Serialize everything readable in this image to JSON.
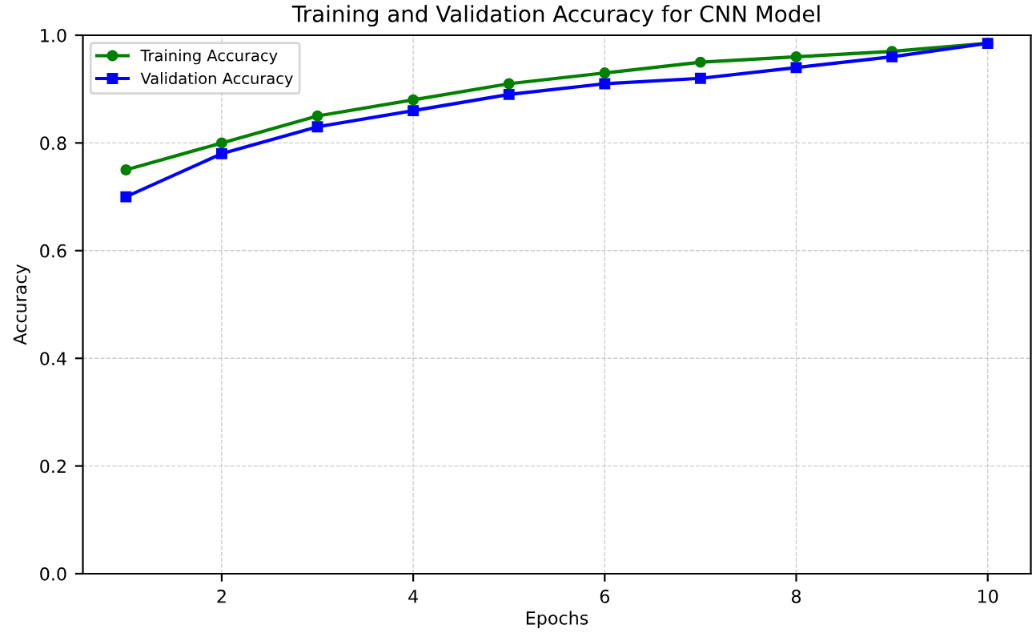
{
  "chart_data": {
    "type": "line",
    "title": "Training and Validation Accuracy for CNN Model",
    "xlabel": "Epochs",
    "ylabel": "Accuracy",
    "x": [
      1,
      2,
      3,
      4,
      5,
      6,
      7,
      8,
      9,
      10
    ],
    "series": [
      {
        "name": "Training Accuracy",
        "color": "#008000",
        "marker": "circle",
        "values": [
          0.75,
          0.8,
          0.85,
          0.88,
          0.91,
          0.93,
          0.95,
          0.96,
          0.97,
          0.985
        ]
      },
      {
        "name": "Validation Accuracy",
        "color": "#0000ff",
        "marker": "square",
        "values": [
          0.7,
          0.78,
          0.83,
          0.86,
          0.89,
          0.91,
          0.92,
          0.94,
          0.96,
          0.985
        ]
      }
    ],
    "xlim": [
      0.55,
      10.45
    ],
    "xticks": [
      2,
      4,
      6,
      8,
      10
    ],
    "ylim": [
      0,
      1
    ],
    "yticks": [
      {
        "value": 0,
        "label": "0.0"
      },
      {
        "value": 0.2,
        "label": "0.2"
      },
      {
        "value": 0.4,
        "label": "0.4"
      },
      {
        "value": 0.6,
        "label": "0.6"
      },
      {
        "value": 0.8,
        "label": "0.8"
      },
      {
        "value": 1,
        "label": "1.0"
      }
    ],
    "grid": true,
    "legend": "top left",
    "line_style": "solid"
  }
}
